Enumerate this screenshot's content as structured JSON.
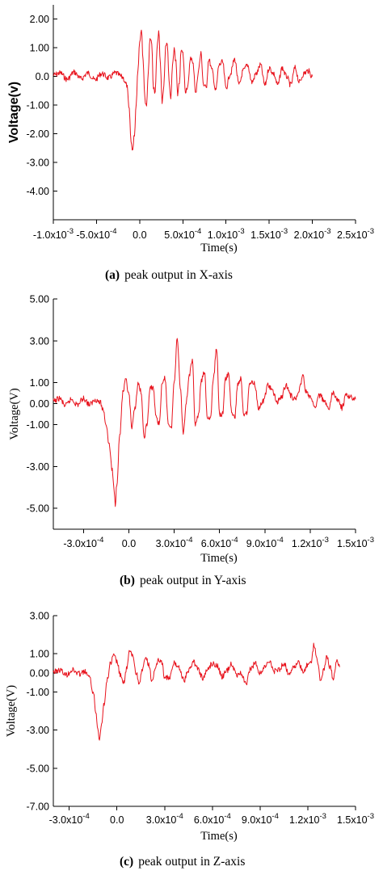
{
  "chart_data": [
    {
      "type": "line",
      "panel_letter": "(a)",
      "caption": "peak output in X-axis",
      "xlabel": "Time(s)",
      "ylabel": "Voltage(v)",
      "xlim": [
        -0.001,
        0.0025
      ],
      "ylim": [
        -5.0,
        2.5
      ],
      "grid": false,
      "x_tick_labels": [
        {
          "v": -0.001,
          "base": "-1.0x10",
          "exp": "-3"
        },
        {
          "v": -0.0005,
          "base": "-5.0x10",
          "exp": "-4"
        },
        {
          "v": 0.0,
          "base": "0.0",
          "exp": ""
        },
        {
          "v": 0.0005,
          "base": "5.0x10",
          "exp": "-4"
        },
        {
          "v": 0.001,
          "base": "1.0x10",
          "exp": "-3"
        },
        {
          "v": 0.0015,
          "base": "1.5x10",
          "exp": "-3"
        },
        {
          "v": 0.002,
          "base": "2.0x10",
          "exp": "-3"
        },
        {
          "v": 0.0025,
          "base": "2.5x10",
          "exp": "-3"
        }
      ],
      "y_tick_labels": [
        {
          "v": 2.0,
          "text": "2.00"
        },
        {
          "v": 1.0,
          "text": "1.00"
        },
        {
          "v": 0.0,
          "text": "0.0"
        },
        {
          "v": -1.0,
          "text": "-1.00"
        },
        {
          "v": -2.0,
          "text": "-2.00"
        },
        {
          "v": -3.0,
          "text": "-3.00"
        },
        {
          "v": -4.0,
          "text": "-4.00"
        }
      ],
      "series": [
        {
          "color": "#e8121c",
          "x": [
            -0.001,
            -0.00092,
            -0.00084,
            -0.00076,
            -0.00068,
            -0.0006,
            -0.00052,
            -0.00044,
            -0.00036,
            -0.00028,
            -0.0002,
            -0.00015,
            -0.00012,
            -0.0001,
            -8e-05,
            -6e-05,
            -4e-05,
            -2e-05,
            0.0,
            2e-05,
            4e-05,
            6e-05,
            8e-05,
            0.0001,
            0.00012,
            0.00014,
            0.00016,
            0.00018,
            0.0002,
            0.00022,
            0.00024,
            0.00026,
            0.00028,
            0.0003,
            0.00032,
            0.00034,
            0.00036,
            0.00038,
            0.0004,
            0.00042,
            0.00044,
            0.00046,
            0.00048,
            0.0005,
            0.00053,
            0.00056,
            0.00059,
            0.00062,
            0.00065,
            0.00068,
            0.00071,
            0.00074,
            0.00077,
            0.0008,
            0.00084,
            0.00088,
            0.00092,
            0.00096,
            0.001,
            0.00105,
            0.0011,
            0.00115,
            0.0012,
            0.00125,
            0.0013,
            0.00135,
            0.0014,
            0.00145,
            0.0015,
            0.00155,
            0.0016,
            0.00165,
            0.0017,
            0.00175,
            0.0018,
            0.00185,
            0.0019,
            0.00195,
            0.002
          ],
          "y": [
            0.05,
            0.12,
            -0.1,
            0.15,
            -0.08,
            0.12,
            -0.12,
            0.1,
            -0.05,
            0.12,
            -0.02,
            -0.3,
            -1.2,
            -2.3,
            -2.55,
            -2.0,
            -0.9,
            0.3,
            1.2,
            1.7,
            0.6,
            -0.8,
            -1.0,
            0.2,
            1.4,
            1.1,
            -0.4,
            -0.6,
            0.9,
            1.6,
            0.4,
            -0.9,
            -0.3,
            1.0,
            1.2,
            -0.2,
            -0.8,
            0.3,
            1.0,
            0.5,
            -0.7,
            -0.2,
            0.9,
            0.8,
            -0.5,
            -0.3,
            0.7,
            0.4,
            -0.6,
            0.2,
            0.8,
            -0.3,
            -0.4,
            0.6,
            0.2,
            -0.5,
            0.4,
            0.5,
            -0.4,
            0.1,
            0.6,
            -0.3,
            0.2,
            0.4,
            -0.2,
            0.1,
            0.4,
            -0.3,
            0.3,
            0.1,
            -0.3,
            0.3,
            0.0,
            -0.3,
            0.3,
            -0.2,
            0.1,
            0.2,
            0.0
          ]
        }
      ]
    },
    {
      "type": "line",
      "panel_letter": "(b)",
      "caption": "peak output in Y-axis",
      "xlabel": "Time(s)",
      "ylabel": "Voltage(V)",
      "xlim": [
        -0.0005,
        0.0015
      ],
      "ylim": [
        -6.0,
        5.0
      ],
      "grid": false,
      "x_tick_labels": [
        {
          "v": -0.0003,
          "base": "-3.0x10",
          "exp": "-4"
        },
        {
          "v": 0.0,
          "base": "0.0",
          "exp": ""
        },
        {
          "v": 0.0003,
          "base": "3.0x10",
          "exp": "-4"
        },
        {
          "v": 0.0006,
          "base": "6.0x10",
          "exp": "-4"
        },
        {
          "v": 0.0009,
          "base": "9.0x10",
          "exp": "-4"
        },
        {
          "v": 0.0012,
          "base": "1.2x10",
          "exp": "-3"
        },
        {
          "v": 0.0015,
          "base": "1.5x10",
          "exp": "-3"
        }
      ],
      "y_tick_labels": [
        {
          "v": 5.0,
          "text": "5.00"
        },
        {
          "v": 3.0,
          "text": "3.00"
        },
        {
          "v": 1.0,
          "text": "1.00"
        },
        {
          "v": 0.0,
          "text": "0.00"
        },
        {
          "v": -1.0,
          "text": "-1.00"
        },
        {
          "v": -3.0,
          "text": "-3.00"
        },
        {
          "v": -5.0,
          "text": "-5.00"
        }
      ],
      "series": [
        {
          "color": "#e8121c",
          "x": [
            -0.0005,
            -0.00046,
            -0.00042,
            -0.00038,
            -0.00034,
            -0.0003,
            -0.00026,
            -0.00022,
            -0.00019,
            -0.00017,
            -0.00015,
            -0.00013,
            -0.00011,
            -0.0001,
            -9e-05,
            -8e-05,
            -6e-05,
            -4e-05,
            -2e-05,
            0.0,
            2e-05,
            4e-05,
            6e-05,
            8e-05,
            0.0001,
            0.00012,
            0.00014,
            0.00016,
            0.00018,
            0.0002,
            0.00022,
            0.00024,
            0.00026,
            0.00028,
            0.0003,
            0.00032,
            0.00034,
            0.00036,
            0.00038,
            0.0004,
            0.00042,
            0.00044,
            0.00046,
            0.00048,
            0.0005,
            0.00052,
            0.00054,
            0.00056,
            0.00058,
            0.0006,
            0.00062,
            0.00064,
            0.00066,
            0.00068,
            0.0007,
            0.00072,
            0.00074,
            0.00076,
            0.00078,
            0.0008,
            0.00083,
            0.00086,
            0.00089,
            0.00092,
            0.00095,
            0.00098,
            0.00101,
            0.00104,
            0.00107,
            0.0011,
            0.00113,
            0.00115,
            0.00117,
            0.0012,
            0.00123,
            0.00126,
            0.00129,
            0.00132,
            0.00135,
            0.00138,
            0.00141,
            0.00144,
            0.00147,
            0.0015
          ],
          "y": [
            0.1,
            0.25,
            -0.1,
            0.2,
            -0.05,
            0.25,
            -0.05,
            0.2,
            0.05,
            -0.3,
            -1.0,
            -2.0,
            -3.2,
            -4.0,
            -4.8,
            -3.8,
            -1.5,
            0.5,
            1.1,
            0.4,
            -1.2,
            -0.2,
            0.9,
            0.6,
            -1.6,
            -1.0,
            0.7,
            0.8,
            -0.6,
            -1.0,
            0.9,
            1.2,
            -0.9,
            -1.2,
            1.0,
            3.2,
            0.8,
            -1.4,
            0.1,
            1.4,
            2.0,
            -1.0,
            -0.6,
            1.1,
            1.5,
            -0.7,
            -0.7,
            1.2,
            2.7,
            -0.5,
            -0.5,
            1.2,
            1.4,
            -0.4,
            -0.7,
            0.9,
            1.2,
            -0.5,
            -0.4,
            1.0,
            1.0,
            -0.2,
            0.1,
            0.9,
            0.6,
            0.1,
            0.3,
            0.9,
            0.4,
            0.2,
            0.7,
            1.4,
            0.6,
            0.3,
            -0.2,
            0.4,
            0.2,
            -0.3,
            0.5,
            0.2,
            -0.2,
            0.4,
            0.3,
            0.2
          ]
        }
      ]
    },
    {
      "type": "line",
      "panel_letter": "(c)",
      "caption": "peak output in Z-axis",
      "xlabel": "Time(s)",
      "ylabel": "Voltage(V)",
      "xlim": [
        -0.0004,
        0.0015
      ],
      "ylim": [
        -7.0,
        3.0
      ],
      "grid": false,
      "x_tick_labels": [
        {
          "v": -0.0003,
          "base": "-3.0x10",
          "exp": "-4"
        },
        {
          "v": 0.0,
          "base": "0.0",
          "exp": ""
        },
        {
          "v": 0.0003,
          "base": "3.0x10",
          "exp": "-4"
        },
        {
          "v": 0.0006,
          "base": "6.0x10",
          "exp": "-4"
        },
        {
          "v": 0.0009,
          "base": "9.0x10",
          "exp": "-4"
        },
        {
          "v": 0.0012,
          "base": "1.2x10",
          "exp": "-3"
        },
        {
          "v": 0.0015,
          "base": "1.5x10",
          "exp": "-3"
        }
      ],
      "y_tick_labels": [
        {
          "v": 3.0,
          "text": "3.00"
        },
        {
          "v": 1.0,
          "text": "1.00"
        },
        {
          "v": 0.0,
          "text": "0.00"
        },
        {
          "v": -1.0,
          "text": "-1.00"
        },
        {
          "v": -3.0,
          "text": "-3.00"
        },
        {
          "v": -5.0,
          "text": "-5.00"
        },
        {
          "v": -7.0,
          "text": "-7.00"
        }
      ],
      "series": [
        {
          "color": "#e8121c",
          "x": [
            -0.0004,
            -0.00036,
            -0.00032,
            -0.00028,
            -0.00024,
            -0.0002,
            -0.00017,
            -0.00015,
            -0.00013,
            -0.00012,
            -0.00011,
            -0.0001,
            -8e-05,
            -6e-05,
            -4e-05,
            -2e-05,
            0.0,
            2e-05,
            4e-05,
            6e-05,
            8e-05,
            0.0001,
            0.00012,
            0.00014,
            0.00016,
            0.00018,
            0.0002,
            0.00022,
            0.00024,
            0.00026,
            0.00028,
            0.0003,
            0.00033,
            0.00036,
            0.00039,
            0.00042,
            0.00045,
            0.00048,
            0.00051,
            0.00054,
            0.00057,
            0.0006,
            0.00063,
            0.00066,
            0.00069,
            0.00072,
            0.00075,
            0.00078,
            0.00081,
            0.00084,
            0.00087,
            0.0009,
            0.00093,
            0.00096,
            0.00099,
            0.00102,
            0.00105,
            0.00108,
            0.00111,
            0.00114,
            0.00117,
            0.0012,
            0.00122,
            0.00124,
            0.00126,
            0.00128,
            0.0013,
            0.00132,
            0.00134,
            0.00136,
            0.00138,
            0.0014
          ],
          "y": [
            0.05,
            0.15,
            -0.1,
            0.15,
            -0.05,
            0.05,
            -0.3,
            -1.0,
            -2.2,
            -3.0,
            -3.4,
            -2.8,
            -1.6,
            -0.3,
            0.5,
            0.9,
            0.6,
            -0.1,
            -0.6,
            0.2,
            1.1,
            0.9,
            0.0,
            -0.5,
            0.1,
            0.8,
            0.4,
            -0.4,
            0.1,
            0.7,
            0.6,
            -0.2,
            -0.3,
            0.5,
            0.3,
            -0.4,
            0.1,
            0.6,
            0.2,
            -0.3,
            0.2,
            0.5,
            0.4,
            -0.2,
            0.1,
            0.5,
            -0.1,
            0.0,
            -0.6,
            0.2,
            0.5,
            0.0,
            0.3,
            0.6,
            0.1,
            0.2,
            0.5,
            0.0,
            0.3,
            0.5,
            0.1,
            0.4,
            0.6,
            1.5,
            0.6,
            -0.4,
            0.2,
            0.9,
            0.3,
            -0.3,
            0.6,
            0.3
          ]
        }
      ]
    }
  ]
}
